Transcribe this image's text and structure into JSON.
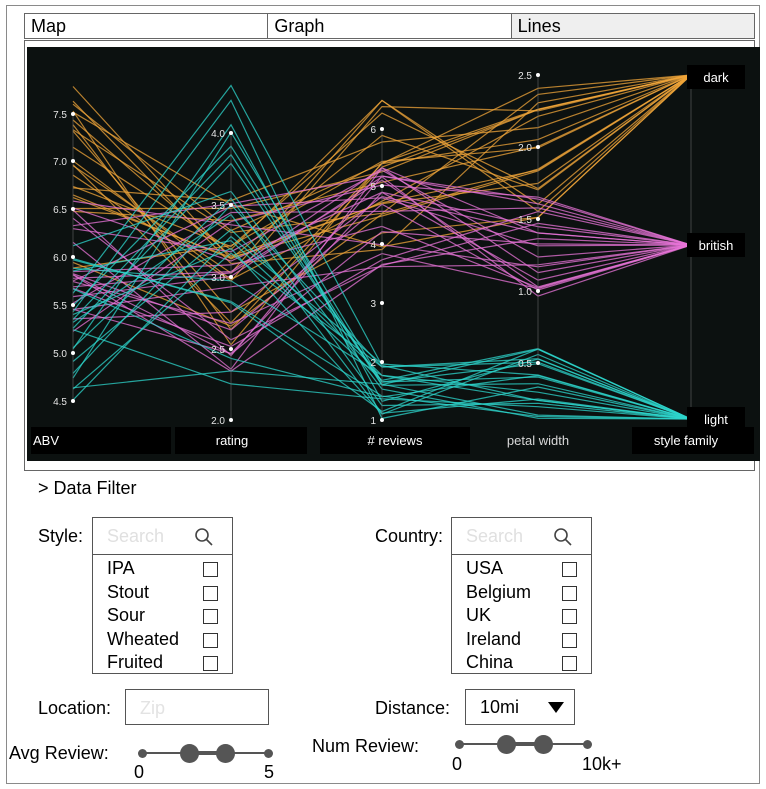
{
  "tabs": [
    "Map",
    "Graph",
    "Lines"
  ],
  "chart_data": {
    "type": "parallel-coordinates",
    "axes": [
      {
        "label": "ABV",
        "ticks": [
          "7.5",
          "7.0",
          "6.5",
          "6.0",
          "5.5",
          "5.0",
          "4.5"
        ]
      },
      {
        "label": "rating",
        "ticks": [
          "4.0",
          "3.5",
          "3.0",
          "2.5",
          "2.0"
        ]
      },
      {
        "label": "# reviews",
        "ticks": [
          "6",
          "5",
          "4",
          "3",
          "2",
          "1"
        ]
      },
      {
        "label": "petal width",
        "ticks": [
          "2.5",
          "2.0",
          "1.5",
          "1.0",
          "0.5"
        ]
      },
      {
        "label": "style family",
        "ticks": [
          "dark",
          "british",
          "light"
        ]
      }
    ],
    "series": [
      {
        "name": "dark",
        "color": "#f0a53a"
      },
      {
        "name": "british",
        "color": "#e874d8"
      },
      {
        "name": "light",
        "color": "#2ed6cc"
      }
    ]
  },
  "filter": {
    "title": "> Data Filter",
    "style_label": "Style:",
    "style_placeholder": "Search",
    "style_items": [
      "IPA",
      "Stout",
      "Sour",
      "Wheated",
      "Fruited"
    ],
    "country_label": "Country:",
    "country_placeholder": "Search",
    "country_items": [
      "USA",
      "Belgium",
      "UK",
      "Ireland",
      "China"
    ],
    "location_label": "Location:",
    "location_placeholder": "Zip",
    "distance_label": "Distance:",
    "distance_value": "10mi",
    "avg_review_label": "Avg Review:",
    "avg_review_min": "0",
    "avg_review_max": "5",
    "num_review_label": "Num Review:",
    "num_review_min": "0",
    "num_review_max": "10k+"
  }
}
